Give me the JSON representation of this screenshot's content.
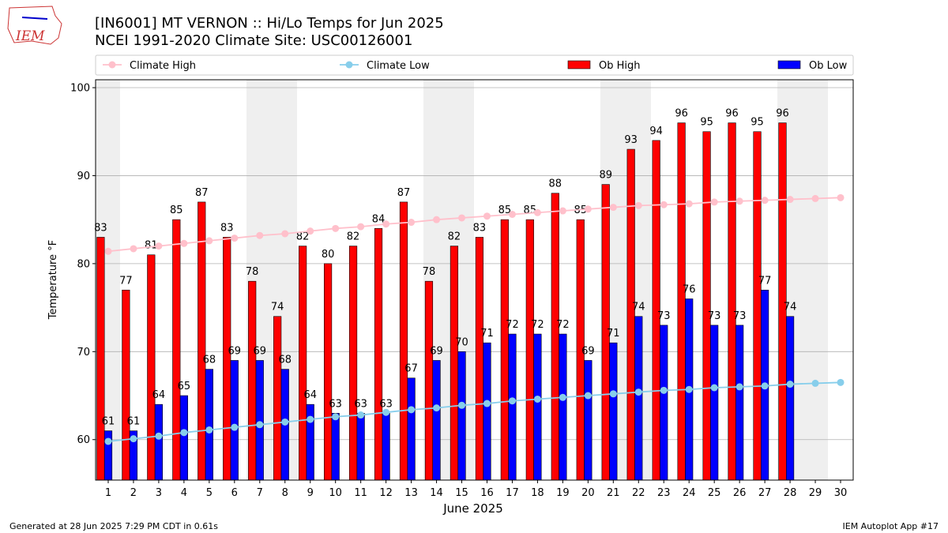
{
  "chart_data": {
    "type": "bar",
    "title": "[IN6001] MT VERNON :: Hi/Lo Temps for Jun 2025",
    "subtitle": "NCEI 1991-2020 Climate Site: USC00126001",
    "logo_text": "IEM",
    "xlabel": "June 2025",
    "ylabel": "Temperature °F",
    "x": [
      1,
      2,
      3,
      4,
      5,
      6,
      7,
      8,
      9,
      10,
      11,
      12,
      13,
      14,
      15,
      16,
      17,
      18,
      19,
      20,
      21,
      22,
      23,
      24,
      25,
      26,
      27,
      28,
      29,
      30
    ],
    "xlim": [
      0.5,
      30.5
    ],
    "xticks": [
      1,
      2,
      3,
      4,
      5,
      6,
      7,
      8,
      9,
      10,
      11,
      12,
      13,
      14,
      15,
      16,
      17,
      18,
      19,
      20,
      21,
      22,
      23,
      24,
      25,
      26,
      27,
      28,
      29,
      30
    ],
    "ylim": [
      55.4,
      100.9
    ],
    "yticks": [
      60,
      70,
      80,
      90,
      100
    ],
    "grid": true,
    "series": [
      {
        "name": "Climate High",
        "type": "line",
        "color": "#ffc0cb",
        "values": [
          81.4,
          81.7,
          82.0,
          82.3,
          82.6,
          82.9,
          83.2,
          83.4,
          83.7,
          84.0,
          84.2,
          84.5,
          84.7,
          85.0,
          85.2,
          85.4,
          85.6,
          85.8,
          86.0,
          86.2,
          86.4,
          86.6,
          86.7,
          86.8,
          87.0,
          87.1,
          87.2,
          87.3,
          87.4,
          87.5
        ]
      },
      {
        "name": "Climate Low",
        "type": "line",
        "color": "#87ceeb",
        "values": [
          59.8,
          60.1,
          60.4,
          60.8,
          61.1,
          61.4,
          61.7,
          62.0,
          62.3,
          62.6,
          62.8,
          63.1,
          63.4,
          63.6,
          63.9,
          64.1,
          64.4,
          64.6,
          64.8,
          65.0,
          65.2,
          65.4,
          65.6,
          65.7,
          65.9,
          66.0,
          66.1,
          66.3,
          66.4,
          66.5
        ]
      },
      {
        "name": "Ob High",
        "type": "bar",
        "color": "#ff0000",
        "values": [
          83,
          77,
          81,
          85,
          87,
          83,
          78,
          74,
          82,
          80,
          82,
          84,
          87,
          78,
          82,
          83,
          85,
          85,
          88,
          85,
          89,
          93,
          94,
          96,
          95,
          96,
          95,
          96,
          null,
          null
        ]
      },
      {
        "name": "Ob Low",
        "type": "bar",
        "color": "#0000ff",
        "values": [
          61,
          61,
          64,
          65,
          68,
          69,
          69,
          68,
          64,
          63,
          63,
          63,
          67,
          69,
          70,
          71,
          72,
          72,
          72,
          69,
          71,
          74,
          73,
          76,
          73,
          73,
          77,
          74,
          null,
          null
        ]
      }
    ],
    "footer_left": "Generated at 28 Jun 2025 7:29 PM CDT in 0.61s",
    "footer_right": "IEM Autoplot App #17"
  }
}
